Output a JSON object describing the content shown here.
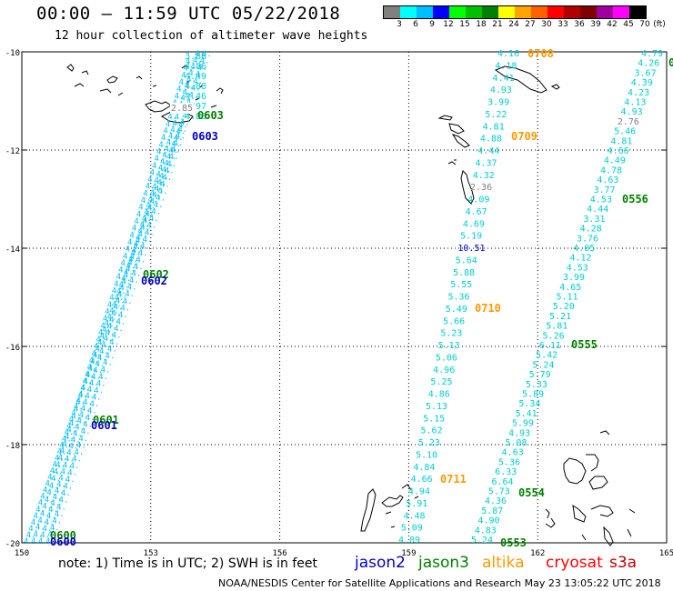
{
  "header": {
    "title": "00:00 – 11:59 UTC 05/22/2018",
    "subtitle": "12 hour collection of altimeter wave heights"
  },
  "colorbar": {
    "unit_label": "(ft)",
    "ticks": [
      "3",
      "6",
      "9",
      "12",
      "15",
      "18",
      "21",
      "24",
      "27",
      "30",
      "33",
      "36",
      "39",
      "42",
      "45",
      "70"
    ],
    "colors": [
      "#808080",
      "#00ffff",
      "#00bfff",
      "#0000ff",
      "#00ff00",
      "#00c000",
      "#008000",
      "#ffff00",
      "#ffa500",
      "#ff6000",
      "#ff0000",
      "#b00000",
      "#800000",
      "#a000a0",
      "#ff00ff",
      "#000000"
    ]
  },
  "map": {
    "lat_labels": [
      "-10",
      "-12",
      "-14",
      "-16",
      "-18",
      "-20"
    ],
    "lon_labels": [
      "150",
      "153",
      "156",
      "159",
      "162",
      "165"
    ],
    "track_labels": [
      {
        "text": "0603",
        "color": "#008000"
      },
      {
        "text": "0603",
        "color": "#0000c0"
      },
      {
        "text": "0602",
        "color": "#008000"
      },
      {
        "text": "0602",
        "color": "#0000c0"
      },
      {
        "text": "0601",
        "color": "#008000"
      },
      {
        "text": "0601",
        "color": "#0000c0"
      },
      {
        "text": "0600",
        "color": "#008000"
      },
      {
        "text": "0600",
        "color": "#0000c0"
      },
      {
        "text": "0708",
        "color": "#ff9900"
      },
      {
        "text": "0709",
        "color": "#ff9900"
      },
      {
        "text": "0710",
        "color": "#ff9900"
      },
      {
        "text": "0711",
        "color": "#ff9900"
      },
      {
        "text": "0556",
        "color": "#008000"
      },
      {
        "text": "0555",
        "color": "#008000"
      },
      {
        "text": "0554",
        "color": "#008000"
      },
      {
        "text": "0553",
        "color": "#008000"
      },
      {
        "text": "0",
        "color": "#008000"
      }
    ],
    "west_track_values": [
      "3.88",
      "4.86",
      "4.49",
      "4.88",
      "4.46",
      "4.97",
      "4.88"
    ],
    "mid_track_values": [
      "4.16",
      "4.18",
      "4.41",
      "4.93",
      "3.99",
      "5.22",
      "4.81",
      "4.88",
      "4.44",
      "4.37",
      "4.32",
      "2.36",
      "4.09",
      "4.67",
      "4.69",
      "5.19",
      "10.51",
      "5.64",
      "5.88",
      "5.55",
      "5.36",
      "5.49",
      "5.66",
      "5.23",
      "5.13",
      "5.06",
      "4.96",
      "5.25",
      "4.86",
      "5.13",
      "5.15",
      "5.62",
      "5.23",
      "5.10",
      "4.84",
      "4.66",
      "4.94",
      "5.91",
      "4.48",
      "5.09",
      "4.89"
    ],
    "east_track_values": [
      "4.79",
      "4.26",
      "3.67",
      "4.39",
      "4.23",
      "4.13",
      "4.93",
      "2.76",
      "5.46",
      "4.81",
      "4.66",
      "4.49",
      "4.78",
      "4.63",
      "3.77",
      "4.53",
      "4.44",
      "3.31",
      "4.28",
      "3.76",
      "4.05",
      "4.12",
      "4.53",
      "3.99",
      "4.65",
      "5.11",
      "5.20",
      "5.21",
      "5.81",
      "5.26",
      "6.11",
      "5.42",
      "5.24",
      "5.79",
      "5.33",
      "5.89",
      "5.34",
      "5.41",
      "5.99",
      "4.93",
      "5.08",
      "4.63",
      "5.36",
      "6.33",
      "6.64",
      "5.73",
      "4.36",
      "5.87",
      "4.90",
      "4.83",
      "5.24"
    ]
  },
  "footer": {
    "note": "note: 1) Time is in UTC; 2) SWH is in feet",
    "satellites": [
      {
        "name": "jason2",
        "color": "#0000c8"
      },
      {
        "name": "jason3",
        "color": "#008000"
      },
      {
        "name": "altika",
        "color": "#ff9900"
      },
      {
        "name": "cryosat",
        "color": "#ff0000"
      },
      {
        "name": "s3a",
        "color": "#c00000"
      }
    ],
    "credit": "NOAA/NESDIS Center for Satellite Applications and Research    May 23 13:05:22 UTC 2018"
  }
}
